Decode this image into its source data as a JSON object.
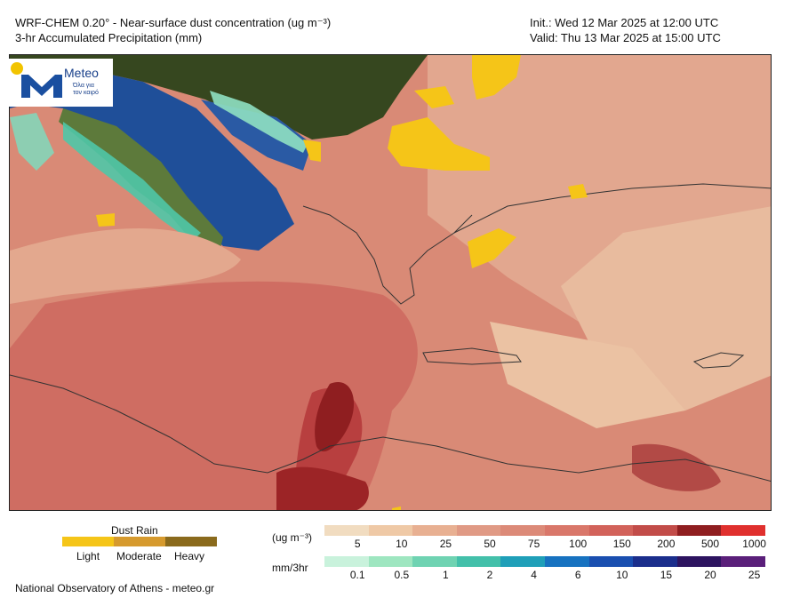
{
  "header": {
    "title_line1": "WRF-CHEM 0.20° - Near-surface dust concentration (ug m⁻³)",
    "title_line2": "3-hr Accumulated Precipitation (mm)",
    "init": "Init.:  Wed 12 Mar 2025 at 12:00 UTC",
    "valid": "Valid: Thu 13 Mar 2025 at 15:00 UTC"
  },
  "logo": {
    "brand": "Meteo",
    "tagline_1": "Όλα για",
    "tagline_2": "τον καιρό"
  },
  "dust_rain_legend": {
    "title": "Dust Rain",
    "items": [
      {
        "label": "Light",
        "color": "#f5c518"
      },
      {
        "label": "Moderate",
        "color": "#d69a2e"
      },
      {
        "label": "Heavy",
        "color": "#8a6a1c"
      }
    ]
  },
  "dust_scale": {
    "unit": "(ug m⁻³)",
    "ticks": [
      "5",
      "10",
      "25",
      "50",
      "75",
      "100",
      "150",
      "200",
      "500",
      "1000"
    ],
    "colors": [
      "#f1dcc0",
      "#efc9a6",
      "#e8b092",
      "#e09a85",
      "#dc8a78",
      "#d9776a",
      "#d2625a",
      "#c24c49",
      "#8f1e20",
      "#e0302e"
    ]
  },
  "rain_scale": {
    "unit": "mm/3hr",
    "ticks": [
      "0.1",
      "0.5",
      "1",
      "2",
      "4",
      "6",
      "10",
      "15",
      "20",
      "25"
    ],
    "colors": [
      "#c9f2dc",
      "#9ee6c0",
      "#6fd3b2",
      "#43c0aa",
      "#1f9fb8",
      "#1772c0",
      "#1a4fb0",
      "#1b2e8c",
      "#2d1460",
      "#5a1f7a"
    ]
  },
  "footer": "National Observatory of Athens - meteo.gr"
}
